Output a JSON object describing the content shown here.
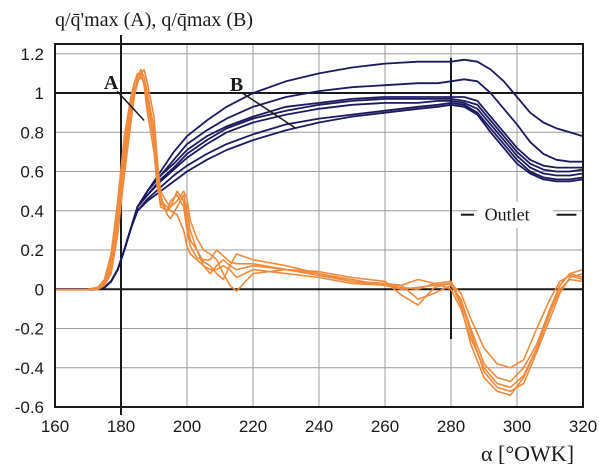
{
  "chart_data": {
    "type": "line",
    "ylabel": "q/q̄'max (A), q/q̄max (B)",
    "xlabel": "α [°OWK]",
    "xlim": [
      160,
      320
    ],
    "ylim": [
      -0.6,
      1.25
    ],
    "x_ticks": [
      160,
      180,
      200,
      220,
      240,
      260,
      280,
      300,
      320
    ],
    "x_tick_labels": [
      "160",
      "180",
      "200",
      "220",
      "240",
      "260",
      "280",
      "300",
      "320"
    ],
    "y_ticks": [
      -0.6,
      -0.4,
      -0.2,
      0,
      0.2,
      0.4,
      0.6,
      0.8,
      1,
      1.2
    ],
    "y_tick_labels": [
      "-0.6",
      "-0.4",
      "-0.2",
      "0",
      "0.2",
      "0.4",
      "0.6",
      "0.8",
      "1",
      "1.2"
    ],
    "grid": true,
    "reference_lines": {
      "x": [
        180,
        280
      ],
      "y": [
        0,
        1
      ]
    },
    "colors": {
      "A": "#f08a3c",
      "B": "#1c1a5e",
      "grid": "#9b9b9b",
      "frame": "#1a1a1a"
    },
    "annotations": [
      {
        "text": "A",
        "x": 177,
        "y": 1.02,
        "arrow_to": [
          187,
          0.86
        ]
      },
      {
        "text": "B",
        "x": 215,
        "y": 1.01,
        "arrow_to": [
          233,
          0.82
        ]
      },
      {
        "text": "Outlet",
        "x": 297,
        "y": 0.38,
        "dashes": [
          [
            283,
            287
          ],
          [
            312,
            318
          ]
        ]
      }
    ],
    "series_A": [
      {
        "x": [
          160,
          170,
          173,
          175,
          177,
          179,
          181,
          183,
          184,
          185,
          186,
          187,
          188,
          190,
          191,
          192,
          194,
          195,
          197,
          199,
          200,
          201,
          203,
          205,
          207,
          209,
          211,
          213,
          215,
          220,
          230,
          240,
          250,
          260,
          265,
          270,
          275,
          280,
          283,
          286,
          290,
          294,
          298,
          302,
          306,
          310,
          313,
          316,
          320
        ],
        "y": [
          0,
          0,
          0.01,
          0.04,
          0.15,
          0.4,
          0.72,
          0.95,
          1.05,
          1.1,
          1.1,
          1.05,
          0.95,
          0.75,
          0.55,
          0.42,
          0.4,
          0.45,
          0.48,
          0.42,
          0.3,
          0.22,
          0.16,
          0.15,
          0.15,
          0.2,
          0.17,
          0.14,
          0.13,
          0.13,
          0.1,
          0.08,
          0.05,
          0.02,
          0,
          0.01,
          0.02,
          0.03,
          -0.02,
          -0.15,
          -0.3,
          -0.38,
          -0.4,
          -0.36,
          -0.2,
          -0.05,
          0.04,
          0.07,
          0.05
        ]
      },
      {
        "x": [
          160,
          170,
          173,
          175,
          177,
          179,
          181,
          183,
          184,
          185,
          186,
          187,
          188,
          190,
          191,
          192,
          194,
          195,
          197,
          199,
          200,
          201,
          203,
          205,
          207,
          209,
          211,
          213,
          215,
          220,
          230,
          240,
          250,
          260,
          265,
          270,
          275,
          280,
          283,
          286,
          290,
          294,
          298,
          302,
          306,
          310,
          313,
          316,
          320
        ],
        "y": [
          0,
          0,
          0,
          0.02,
          0.1,
          0.3,
          0.62,
          0.88,
          1.0,
          1.08,
          1.12,
          1.08,
          1.0,
          0.82,
          0.62,
          0.48,
          0.38,
          0.36,
          0.42,
          0.48,
          0.4,
          0.3,
          0.2,
          0.12,
          0.08,
          0.12,
          0.15,
          0.12,
          0.1,
          0.12,
          0.1,
          0.07,
          0.04,
          0.03,
          0.02,
          -0.05,
          -0.02,
          0.02,
          -0.05,
          -0.2,
          -0.38,
          -0.45,
          -0.47,
          -0.4,
          -0.28,
          -0.1,
          0.02,
          0.08,
          0.06
        ]
      },
      {
        "x": [
          160,
          170,
          173,
          175,
          177,
          179,
          181,
          183,
          184,
          185,
          186,
          187,
          188,
          190,
          191,
          192,
          194,
          195,
          197,
          199,
          200,
          201,
          203,
          205,
          207,
          209,
          211,
          213,
          215,
          220,
          230,
          240,
          250,
          260,
          265,
          270,
          275,
          280,
          283,
          286,
          290,
          294,
          298,
          302,
          306,
          310,
          313,
          316,
          320
        ],
        "y": [
          0,
          0,
          0,
          0.03,
          0.12,
          0.35,
          0.68,
          0.92,
          1.02,
          1.06,
          1.08,
          1.06,
          0.98,
          0.78,
          0.6,
          0.44,
          0.4,
          0.42,
          0.5,
          0.45,
          0.35,
          0.25,
          0.2,
          0.14,
          0.12,
          0.08,
          0.05,
          0.12,
          0.18,
          0.15,
          0.12,
          0.08,
          0.04,
          0.02,
          0.01,
          0,
          0.03,
          0.04,
          -0.06,
          -0.22,
          -0.42,
          -0.5,
          -0.52,
          -0.48,
          -0.32,
          -0.15,
          -0.02,
          0.06,
          0.08
        ]
      },
      {
        "x": [
          160,
          170,
          173,
          175,
          177,
          179,
          181,
          183,
          184,
          185,
          186,
          187,
          188,
          190,
          191,
          192,
          194,
          195,
          197,
          199,
          200,
          201,
          203,
          205,
          207,
          209,
          211,
          213,
          215,
          220,
          230,
          240,
          250,
          260,
          265,
          270,
          275,
          280,
          283,
          286,
          290,
          294,
          298,
          302,
          306,
          310,
          313,
          316,
          320
        ],
        "y": [
          0,
          0,
          0.01,
          0.05,
          0.18,
          0.45,
          0.78,
          0.98,
          1.05,
          1.09,
          1.1,
          1.04,
          0.9,
          0.7,
          0.52,
          0.45,
          0.42,
          0.4,
          0.38,
          0.3,
          0.22,
          0.18,
          0.15,
          0.12,
          0.1,
          0.1,
          0.12,
          0.1,
          0.06,
          0.1,
          0.08,
          0.06,
          0.03,
          0.02,
          0.02,
          0.05,
          0.03,
          0,
          -0.1,
          -0.25,
          -0.4,
          -0.48,
          -0.5,
          -0.44,
          -0.3,
          -0.12,
          0,
          0.05,
          0.04
        ]
      },
      {
        "x": [
          160,
          170,
          173,
          175,
          177,
          179,
          181,
          183,
          184,
          185,
          186,
          187,
          188,
          190,
          191,
          192,
          194,
          195,
          197,
          199,
          200,
          201,
          203,
          205,
          207,
          209,
          211,
          213,
          215,
          220,
          230,
          240,
          250,
          260,
          265,
          270,
          275,
          280,
          283,
          286,
          290,
          294,
          298,
          302,
          306,
          310,
          313,
          316,
          320
        ],
        "y": [
          0,
          0,
          0,
          0.02,
          0.08,
          0.28,
          0.58,
          0.85,
          0.98,
          1.05,
          1.1,
          1.12,
          1.05,
          0.88,
          0.66,
          0.5,
          0.44,
          0.42,
          0.45,
          0.5,
          0.46,
          0.35,
          0.26,
          0.2,
          0.18,
          0.15,
          0.08,
          0.02,
          -0.01,
          0.08,
          0.1,
          0.09,
          0.06,
          0.04,
          -0.03,
          -0.08,
          0.01,
          0.03,
          -0.08,
          -0.28,
          -0.45,
          -0.52,
          -0.54,
          -0.45,
          -0.3,
          -0.12,
          0.02,
          0.08,
          0.1
        ]
      }
    ],
    "series_B": [
      {
        "x": [
          160,
          172,
          175,
          177,
          179,
          181,
          183,
          185,
          188,
          192,
          196,
          200,
          206,
          212,
          220,
          230,
          240,
          250,
          260,
          270,
          276,
          280,
          284,
          288,
          292,
          296,
          300,
          304,
          308,
          312,
          316,
          320
        ],
        "y": [
          0,
          0,
          0.01,
          0.04,
          0.1,
          0.2,
          0.31,
          0.42,
          0.5,
          0.6,
          0.7,
          0.78,
          0.86,
          0.93,
          1.0,
          1.06,
          1.1,
          1.13,
          1.15,
          1.16,
          1.16,
          1.16,
          1.17,
          1.16,
          1.12,
          1.06,
          0.98,
          0.9,
          0.85,
          0.82,
          0.8,
          0.78
        ]
      },
      {
        "x": [
          160,
          172,
          175,
          177,
          179,
          181,
          183,
          185,
          188,
          192,
          196,
          200,
          206,
          212,
          220,
          230,
          240,
          250,
          260,
          270,
          276,
          280,
          284,
          288,
          292,
          296,
          300,
          304,
          308,
          312,
          316,
          320
        ],
        "y": [
          0,
          0,
          0.01,
          0.04,
          0.1,
          0.2,
          0.31,
          0.42,
          0.5,
          0.58,
          0.66,
          0.74,
          0.81,
          0.87,
          0.93,
          0.98,
          1.01,
          1.03,
          1.04,
          1.05,
          1.05,
          1.06,
          1.07,
          1.06,
          1.0,
          0.92,
          0.84,
          0.75,
          0.69,
          0.66,
          0.65,
          0.65
        ]
      },
      {
        "x": [
          160,
          172,
          175,
          177,
          179,
          181,
          183,
          185,
          188,
          192,
          196,
          200,
          206,
          212,
          220,
          230,
          240,
          250,
          260,
          270,
          276,
          280,
          284,
          288,
          292,
          296,
          300,
          304,
          308,
          312,
          316,
          320
        ],
        "y": [
          0,
          0,
          0.01,
          0.04,
          0.1,
          0.2,
          0.31,
          0.42,
          0.5,
          0.58,
          0.64,
          0.71,
          0.78,
          0.83,
          0.88,
          0.93,
          0.95,
          0.97,
          0.98,
          0.98,
          0.98,
          0.98,
          0.98,
          0.96,
          0.88,
          0.8,
          0.72,
          0.66,
          0.63,
          0.62,
          0.62,
          0.62
        ]
      },
      {
        "x": [
          160,
          172,
          175,
          177,
          179,
          181,
          183,
          185,
          188,
          192,
          196,
          200,
          206,
          212,
          220,
          230,
          240,
          250,
          260,
          270,
          276,
          280,
          284,
          288,
          292,
          296,
          300,
          304,
          308,
          312,
          316,
          320
        ],
        "y": [
          0,
          0,
          0.01,
          0.04,
          0.1,
          0.2,
          0.31,
          0.42,
          0.48,
          0.56,
          0.62,
          0.69,
          0.76,
          0.82,
          0.87,
          0.91,
          0.94,
          0.96,
          0.97,
          0.97,
          0.97,
          0.97,
          0.96,
          0.94,
          0.86,
          0.78,
          0.7,
          0.64,
          0.61,
          0.6,
          0.6,
          0.61
        ]
      },
      {
        "x": [
          160,
          172,
          175,
          177,
          179,
          181,
          183,
          185,
          188,
          192,
          196,
          200,
          206,
          212,
          220,
          230,
          240,
          250,
          260,
          270,
          276,
          280,
          284,
          288,
          292,
          296,
          300,
          304,
          308,
          312,
          316,
          320
        ],
        "y": [
          0,
          0,
          0.01,
          0.04,
          0.1,
          0.2,
          0.31,
          0.42,
          0.48,
          0.55,
          0.61,
          0.67,
          0.74,
          0.8,
          0.85,
          0.89,
          0.92,
          0.94,
          0.95,
          0.95,
          0.96,
          0.96,
          0.95,
          0.92,
          0.84,
          0.76,
          0.68,
          0.62,
          0.59,
          0.58,
          0.58,
          0.59
        ]
      },
      {
        "x": [
          160,
          172,
          175,
          177,
          179,
          181,
          183,
          185,
          188,
          192,
          196,
          200,
          206,
          212,
          220,
          230,
          240,
          250,
          260,
          270,
          276,
          280,
          284,
          288,
          292,
          296,
          300,
          304,
          308,
          312,
          316,
          320
        ],
        "y": [
          0,
          0,
          0.01,
          0.04,
          0.1,
          0.2,
          0.31,
          0.4,
          0.46,
          0.52,
          0.58,
          0.63,
          0.69,
          0.74,
          0.79,
          0.84,
          0.87,
          0.89,
          0.91,
          0.93,
          0.94,
          0.95,
          0.94,
          0.9,
          0.82,
          0.74,
          0.66,
          0.6,
          0.57,
          0.56,
          0.56,
          0.57
        ]
      },
      {
        "x": [
          160,
          172,
          175,
          177,
          179,
          181,
          183,
          185,
          188,
          192,
          196,
          200,
          206,
          212,
          220,
          230,
          240,
          250,
          260,
          270,
          276,
          280,
          284,
          288,
          292,
          296,
          300,
          304,
          308,
          312,
          316,
          320
        ],
        "y": [
          0,
          0,
          0.01,
          0.04,
          0.1,
          0.2,
          0.31,
          0.4,
          0.45,
          0.5,
          0.55,
          0.6,
          0.66,
          0.71,
          0.76,
          0.81,
          0.85,
          0.88,
          0.9,
          0.92,
          0.93,
          0.94,
          0.93,
          0.89,
          0.8,
          0.72,
          0.64,
          0.59,
          0.56,
          0.55,
          0.55,
          0.56
        ]
      }
    ]
  }
}
